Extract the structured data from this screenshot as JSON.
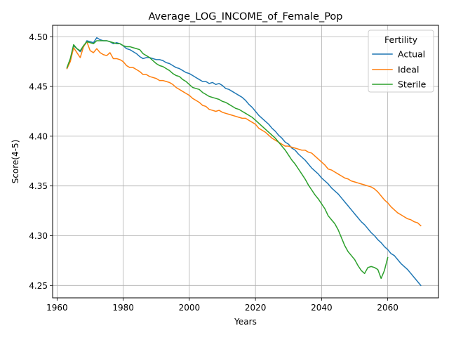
{
  "chart_data": {
    "type": "line",
    "title": "Average_LOG_INCOME_of_Female_Pop",
    "xlabel": "Years",
    "ylabel": "Score(4-5)",
    "xlim": [
      1958.65,
      2075.35
    ],
    "ylim": [
      4.2375,
      4.5115
    ],
    "xticks": [
      1960,
      1980,
      2000,
      2020,
      2040,
      2060
    ],
    "yticks": [
      4.25,
      4.3,
      4.35,
      4.4,
      4.45,
      4.5
    ],
    "xtick_labels": [
      "1960",
      "1980",
      "2000",
      "2020",
      "2040",
      "2060"
    ],
    "ytick_labels": [
      "4.25",
      "4.30",
      "4.35",
      "4.40",
      "4.45",
      "4.50"
    ],
    "grid": true,
    "legend": {
      "title": "Fertility",
      "placement": "top-right"
    },
    "series": [
      {
        "name": "Actual",
        "color": "#1f77b4",
        "x": [
          1963,
          1964,
          1965,
          1966,
          1967,
          1968,
          1969,
          1970,
          1971,
          1972,
          1973,
          1974,
          1975,
          1976,
          1977,
          1978,
          1979,
          1980,
          1981,
          1982,
          1983,
          1984,
          1985,
          1986,
          1987,
          1988,
          1989,
          1990,
          1991,
          1992,
          1993,
          1994,
          1995,
          1996,
          1997,
          1998,
          1999,
          2000,
          2001,
          2002,
          2003,
          2004,
          2005,
          2006,
          2007,
          2008,
          2009,
          2010,
          2011,
          2012,
          2013,
          2014,
          2015,
          2016,
          2017,
          2018,
          2019,
          2020,
          2021,
          2022,
          2023,
          2024,
          2025,
          2026,
          2027,
          2028,
          2029,
          2030,
          2031,
          2032,
          2033,
          2034,
          2035,
          2036,
          2037,
          2038,
          2039,
          2040,
          2041,
          2042,
          2043,
          2044,
          2045,
          2046,
          2047,
          2048,
          2049,
          2050,
          2051,
          2052,
          2053,
          2054,
          2055,
          2056,
          2057,
          2058,
          2059,
          2060,
          2061,
          2062,
          2063,
          2064,
          2065,
          2066,
          2067,
          2068,
          2069,
          2070
        ],
        "y": [
          4.468,
          4.476,
          4.491,
          4.488,
          4.485,
          4.49,
          4.496,
          4.495,
          4.494,
          4.499,
          4.497,
          4.496,
          4.496,
          4.495,
          4.493,
          4.494,
          4.493,
          4.491,
          4.488,
          4.487,
          4.485,
          4.483,
          4.48,
          4.478,
          4.479,
          4.479,
          4.478,
          4.477,
          4.477,
          4.476,
          4.474,
          4.473,
          4.471,
          4.469,
          4.468,
          4.466,
          4.464,
          4.463,
          4.461,
          4.459,
          4.457,
          4.455,
          4.455,
          4.453,
          4.454,
          4.452,
          4.453,
          4.451,
          4.448,
          4.447,
          4.445,
          4.443,
          4.441,
          4.439,
          4.436,
          4.432,
          4.429,
          4.425,
          4.421,
          4.418,
          4.415,
          4.412,
          4.408,
          4.405,
          4.401,
          4.398,
          4.394,
          4.392,
          4.388,
          4.386,
          4.382,
          4.379,
          4.376,
          4.372,
          4.368,
          4.365,
          4.362,
          4.358,
          4.355,
          4.352,
          4.348,
          4.345,
          4.342,
          4.338,
          4.334,
          4.33,
          4.326,
          4.322,
          4.318,
          4.314,
          4.311,
          4.307,
          4.303,
          4.3,
          4.296,
          4.293,
          4.289,
          4.286,
          4.282,
          4.28,
          4.276,
          4.272,
          4.269,
          4.266,
          4.262,
          4.258,
          4.254,
          4.25
        ]
      },
      {
        "name": "Ideal",
        "color": "#ff7f0e",
        "x": [
          1963,
          1964,
          1965,
          1966,
          1967,
          1968,
          1969,
          1970,
          1971,
          1972,
          1973,
          1974,
          1975,
          1976,
          1977,
          1978,
          1979,
          1980,
          1981,
          1982,
          1983,
          1984,
          1985,
          1986,
          1987,
          1988,
          1989,
          1990,
          1991,
          1992,
          1993,
          1994,
          1995,
          1996,
          1997,
          1998,
          1999,
          2000,
          2001,
          2002,
          2003,
          2004,
          2005,
          2006,
          2007,
          2008,
          2009,
          2010,
          2011,
          2012,
          2013,
          2014,
          2015,
          2016,
          2017,
          2018,
          2019,
          2020,
          2021,
          2022,
          2023,
          2024,
          2025,
          2026,
          2027,
          2028,
          2029,
          2030,
          2031,
          2032,
          2033,
          2034,
          2035,
          2036,
          2037,
          2038,
          2039,
          2040,
          2041,
          2042,
          2043,
          2044,
          2045,
          2046,
          2047,
          2048,
          2049,
          2050,
          2051,
          2052,
          2053,
          2054,
          2055,
          2056,
          2057,
          2058,
          2059,
          2060,
          2061,
          2062,
          2063,
          2064,
          2065,
          2066,
          2067,
          2068,
          2069,
          2070
        ],
        "y": [
          4.468,
          4.475,
          4.489,
          4.484,
          4.479,
          4.49,
          4.495,
          4.486,
          4.484,
          4.488,
          4.484,
          4.482,
          4.481,
          4.484,
          4.478,
          4.478,
          4.477,
          4.475,
          4.471,
          4.469,
          4.469,
          4.467,
          4.465,
          4.462,
          4.462,
          4.46,
          4.459,
          4.458,
          4.456,
          4.456,
          4.455,
          4.454,
          4.452,
          4.449,
          4.447,
          4.445,
          4.443,
          4.441,
          4.438,
          4.436,
          4.434,
          4.431,
          4.43,
          4.427,
          4.426,
          4.425,
          4.426,
          4.424,
          4.423,
          4.422,
          4.421,
          4.42,
          4.419,
          4.418,
          4.418,
          4.416,
          4.414,
          4.412,
          4.408,
          4.406,
          4.404,
          4.401,
          4.398,
          4.396,
          4.394,
          4.392,
          4.39,
          4.39,
          4.389,
          4.388,
          4.387,
          4.386,
          4.386,
          4.384,
          4.383,
          4.38,
          4.377,
          4.374,
          4.371,
          4.367,
          4.366,
          4.364,
          4.362,
          4.36,
          4.358,
          4.357,
          4.355,
          4.354,
          4.353,
          4.352,
          4.351,
          4.35,
          4.349,
          4.347,
          4.344,
          4.34,
          4.336,
          4.333,
          4.329,
          4.326,
          4.323,
          4.321,
          4.319,
          4.317,
          4.316,
          4.314,
          4.313,
          4.31
        ]
      },
      {
        "name": "Sterile",
        "color": "#2ca02c",
        "x": [
          1963,
          1964,
          1965,
          1966,
          1967,
          1968,
          1969,
          1970,
          1971,
          1972,
          1973,
          1974,
          1975,
          1976,
          1977,
          1978,
          1979,
          1980,
          1981,
          1982,
          1983,
          1984,
          1985,
          1986,
          1987,
          1988,
          1989,
          1990,
          1991,
          1992,
          1993,
          1994,
          1995,
          1996,
          1997,
          1998,
          1999,
          2000,
          2001,
          2002,
          2003,
          2004,
          2005,
          2006,
          2007,
          2008,
          2009,
          2010,
          2011,
          2012,
          2013,
          2014,
          2015,
          2016,
          2017,
          2018,
          2019,
          2020,
          2021,
          2022,
          2023,
          2024,
          2025,
          2026,
          2027,
          2028,
          2029,
          2030,
          2031,
          2032,
          2033,
          2034,
          2035,
          2036,
          2037,
          2038,
          2039,
          2040,
          2041,
          2042,
          2043,
          2044,
          2045,
          2046,
          2047,
          2048,
          2049,
          2050,
          2051,
          2052,
          2053,
          2054,
          2055,
          2056,
          2057,
          2058,
          2059,
          2060
        ],
        "y": [
          4.469,
          4.478,
          4.492,
          4.488,
          4.486,
          4.491,
          4.495,
          4.494,
          4.493,
          4.496,
          4.496,
          4.496,
          4.496,
          4.495,
          4.494,
          4.493,
          4.493,
          4.491,
          4.49,
          4.49,
          4.489,
          4.488,
          4.487,
          4.483,
          4.481,
          4.479,
          4.476,
          4.473,
          4.471,
          4.47,
          4.468,
          4.466,
          4.463,
          4.461,
          4.46,
          4.457,
          4.455,
          4.452,
          4.449,
          4.448,
          4.447,
          4.444,
          4.442,
          4.44,
          4.439,
          4.438,
          4.437,
          4.435,
          4.434,
          4.432,
          4.43,
          4.428,
          4.427,
          4.425,
          4.423,
          4.421,
          4.419,
          4.416,
          4.413,
          4.41,
          4.407,
          4.404,
          4.401,
          4.398,
          4.394,
          4.39,
          4.386,
          4.381,
          4.376,
          4.372,
          4.367,
          4.362,
          4.357,
          4.351,
          4.346,
          4.341,
          4.337,
          4.332,
          4.327,
          4.32,
          4.316,
          4.312,
          4.306,
          4.298,
          4.29,
          4.284,
          4.28,
          4.276,
          4.27,
          4.265,
          4.262,
          4.268,
          4.269,
          4.268,
          4.266,
          4.257,
          4.265,
          4.278
        ]
      }
    ]
  }
}
